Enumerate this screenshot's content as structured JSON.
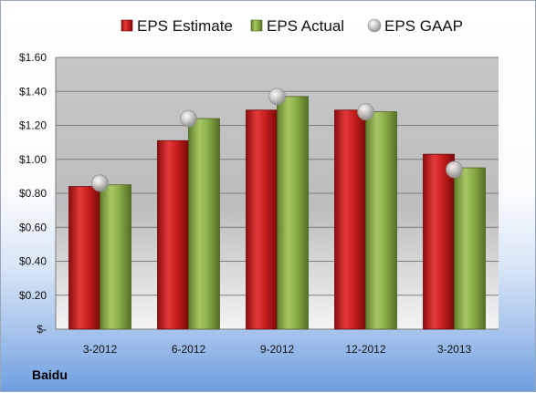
{
  "company_label": "Baidu",
  "chart_data": {
    "type": "bar",
    "categories": [
      "3-2012",
      "6-2012",
      "9-2012",
      "12-2012",
      "3-2013"
    ],
    "series": [
      {
        "name": "EPS Estimate",
        "kind": "bar",
        "color": "#cc1f1f",
        "values": [
          0.84,
          1.11,
          1.29,
          1.29,
          1.03
        ]
      },
      {
        "name": "EPS Actual",
        "kind": "bar",
        "color": "#8db04a",
        "values": [
          0.85,
          1.24,
          1.37,
          1.28,
          0.95
        ]
      },
      {
        "name": "EPS GAAP",
        "kind": "marker",
        "color": "#c8c8c8",
        "values": [
          0.86,
          1.24,
          1.37,
          1.28,
          0.94
        ]
      }
    ],
    "yticks": [
      "$-",
      "$0.20",
      "$0.40",
      "$0.60",
      "$0.80",
      "$1.00",
      "$1.20",
      "$1.40",
      "$1.60"
    ],
    "ylim": [
      0,
      1.6
    ],
    "ystep": 0.2,
    "grid": true,
    "legend_position": "top"
  }
}
